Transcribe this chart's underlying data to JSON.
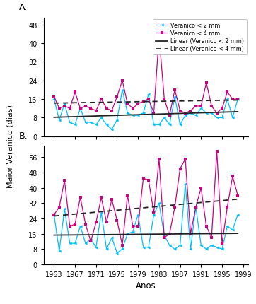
{
  "years": [
    1963,
    1964,
    1965,
    1966,
    1967,
    1968,
    1969,
    1970,
    1971,
    1972,
    1973,
    1974,
    1975,
    1976,
    1977,
    1978,
    1979,
    1980,
    1981,
    1982,
    1983,
    1984,
    1985,
    1986,
    1987,
    1988,
    1989,
    1990,
    1991,
    1992,
    1993,
    1994,
    1995,
    1996,
    1997,
    1998
  ],
  "A_2mm": [
    16,
    7,
    14,
    6,
    5,
    12,
    6,
    6,
    5,
    8,
    5,
    3,
    7,
    20,
    10,
    9,
    9,
    10,
    18,
    5,
    5,
    8,
    5,
    17,
    5,
    9,
    10,
    9,
    12,
    10,
    10,
    8,
    8,
    16,
    8,
    16
  ],
  "A_4mm": [
    17,
    12,
    13,
    12,
    19,
    12,
    13,
    12,
    11,
    16,
    12,
    11,
    17,
    24,
    14,
    12,
    14,
    15,
    16,
    10,
    43,
    16,
    9,
    20,
    11,
    10,
    11,
    13,
    13,
    23,
    13,
    10,
    12,
    19,
    16,
    16
  ],
  "B_2mm": [
    26,
    7,
    29,
    11,
    11,
    20,
    11,
    13,
    9,
    27,
    8,
    14,
    6,
    8,
    16,
    17,
    26,
    9,
    9,
    26,
    32,
    15,
    10,
    8,
    10,
    42,
    8,
    30,
    10,
    8,
    10,
    9,
    8,
    20,
    18,
    26
  ],
  "B_4mm": [
    26,
    30,
    44,
    20,
    21,
    35,
    21,
    12,
    22,
    35,
    22,
    34,
    23,
    10,
    36,
    20,
    20,
    45,
    44,
    27,
    55,
    14,
    16,
    30,
    50,
    55,
    16,
    30,
    40,
    20,
    14,
    59,
    11,
    30,
    46,
    36
  ],
  "color_2mm": "#00bfff",
  "color_4mm": "#cc007f",
  "color_linear_2mm": "#222222",
  "color_linear_4mm": "#222222",
  "A_yticks": [
    0,
    8,
    16,
    24,
    32,
    40,
    48
  ],
  "B_yticks": [
    0,
    8,
    16,
    24,
    32,
    40,
    48,
    56
  ],
  "A_ylim": [
    0,
    51
  ],
  "B_ylim": [
    0,
    62
  ],
  "xlabel": "Anos",
  "ylabel": "Maior Veranico (dias)",
  "legend_labels": [
    "Veranico < 2 mm",
    "Veranico < 4 mm",
    "Linear (Veranico < 2 mm)",
    "Linear (Veranico < 4 mm)"
  ],
  "label_A": "A.",
  "label_B": "B.",
  "xtick_years": [
    1963,
    1967,
    1971,
    1975,
    1979,
    1983,
    1987,
    1991,
    1995,
    1999
  ],
  "fig_width": 3.62,
  "fig_height": 4.31,
  "dpi": 100
}
